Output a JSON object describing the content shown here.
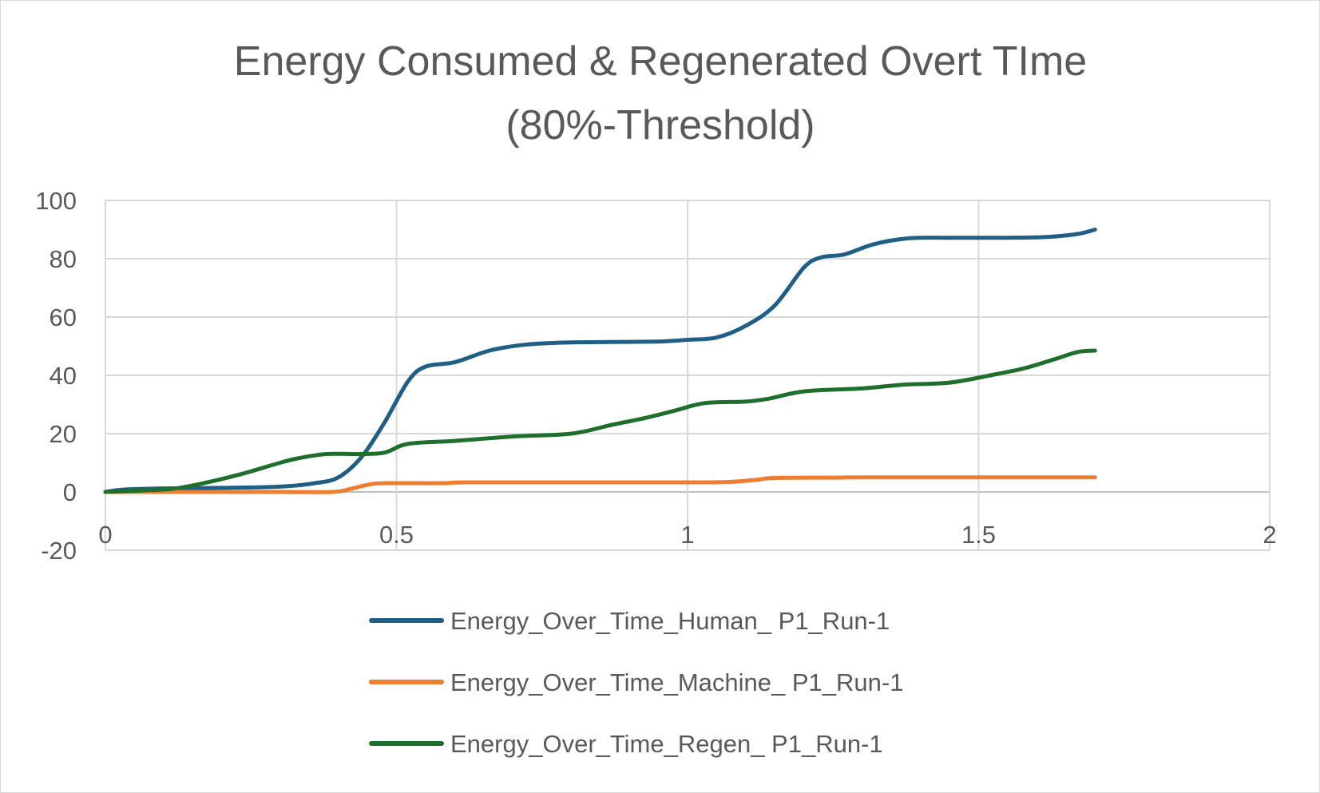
{
  "chart_data": {
    "type": "line",
    "title_lines": [
      "Energy Consumed & Regenerated Overt TIme",
      "(80%-Threshold)"
    ],
    "xlabel": "",
    "ylabel": "",
    "xlim": [
      0,
      2
    ],
    "ylim": [
      -20,
      100
    ],
    "x_ticks": [
      0,
      0.5,
      1,
      1.5,
      2
    ],
    "x_tick_labels": [
      "0",
      "0.5",
      "1",
      "1.5",
      "2"
    ],
    "y_ticks": [
      -20,
      0,
      20,
      40,
      60,
      80,
      100
    ],
    "y_tick_labels": [
      "-20",
      "0",
      "20",
      "40",
      "60",
      "80",
      "100"
    ],
    "grid": true,
    "legend_position": "bottom",
    "series": [
      {
        "name": "Energy_Over_Time_Human_ P1_Run-1",
        "color": "#1f5f86",
        "points": [
          [
            0,
            0
          ],
          [
            0.03,
            0.8
          ],
          [
            0.1,
            1.2
          ],
          [
            0.2,
            1.4
          ],
          [
            0.3,
            1.8
          ],
          [
            0.36,
            3
          ],
          [
            0.4,
            5
          ],
          [
            0.44,
            12
          ],
          [
            0.48,
            24
          ],
          [
            0.52,
            38
          ],
          [
            0.55,
            43
          ],
          [
            0.6,
            44.5
          ],
          [
            0.66,
            48.5
          ],
          [
            0.72,
            50.5
          ],
          [
            0.78,
            51.2
          ],
          [
            0.85,
            51.4
          ],
          [
            0.95,
            51.6
          ],
          [
            1.0,
            52.2
          ],
          [
            1.05,
            53
          ],
          [
            1.1,
            57
          ],
          [
            1.15,
            64
          ],
          [
            1.2,
            77
          ],
          [
            1.23,
            80.5
          ],
          [
            1.27,
            81.5
          ],
          [
            1.32,
            85
          ],
          [
            1.38,
            87
          ],
          [
            1.45,
            87.2
          ],
          [
            1.55,
            87.2
          ],
          [
            1.62,
            87.5
          ],
          [
            1.67,
            88.5
          ],
          [
            1.7,
            90
          ]
        ]
      },
      {
        "name": "Energy_Over_Time_Machine_ P1_Run-1",
        "color": "#ed7d31",
        "points": [
          [
            0,
            0
          ],
          [
            0.2,
            0
          ],
          [
            0.3,
            0
          ],
          [
            0.39,
            0
          ],
          [
            0.42,
            1
          ],
          [
            0.46,
            2.8
          ],
          [
            0.5,
            3
          ],
          [
            0.58,
            3
          ],
          [
            0.62,
            3.3
          ],
          [
            0.8,
            3.3
          ],
          [
            1.0,
            3.3
          ],
          [
            1.07,
            3.4
          ],
          [
            1.12,
            4.2
          ],
          [
            1.15,
            4.8
          ],
          [
            1.25,
            4.9
          ],
          [
            1.3,
            5
          ],
          [
            1.5,
            5
          ],
          [
            1.7,
            5
          ]
        ]
      },
      {
        "name": "Energy_Over_Time_Regen_ P1_Run-1",
        "color": "#1e6e2c",
        "points": [
          [
            0,
            0
          ],
          [
            0.06,
            0.5
          ],
          [
            0.12,
            1.2
          ],
          [
            0.18,
            3.5
          ],
          [
            0.24,
            6.5
          ],
          [
            0.3,
            10
          ],
          [
            0.33,
            11.5
          ],
          [
            0.38,
            13
          ],
          [
            0.44,
            13
          ],
          [
            0.48,
            13.5
          ],
          [
            0.52,
            16.5
          ],
          [
            0.6,
            17.5
          ],
          [
            0.7,
            19
          ],
          [
            0.8,
            20
          ],
          [
            0.87,
            23
          ],
          [
            0.93,
            25.5
          ],
          [
            0.98,
            28
          ],
          [
            1.03,
            30.5
          ],
          [
            1.1,
            31
          ],
          [
            1.14,
            32
          ],
          [
            1.2,
            34.5
          ],
          [
            1.3,
            35.5
          ],
          [
            1.37,
            36.8
          ],
          [
            1.45,
            37.5
          ],
          [
            1.52,
            40
          ],
          [
            1.58,
            42.5
          ],
          [
            1.63,
            45.5
          ],
          [
            1.67,
            48
          ],
          [
            1.7,
            48.5
          ]
        ]
      }
    ]
  }
}
